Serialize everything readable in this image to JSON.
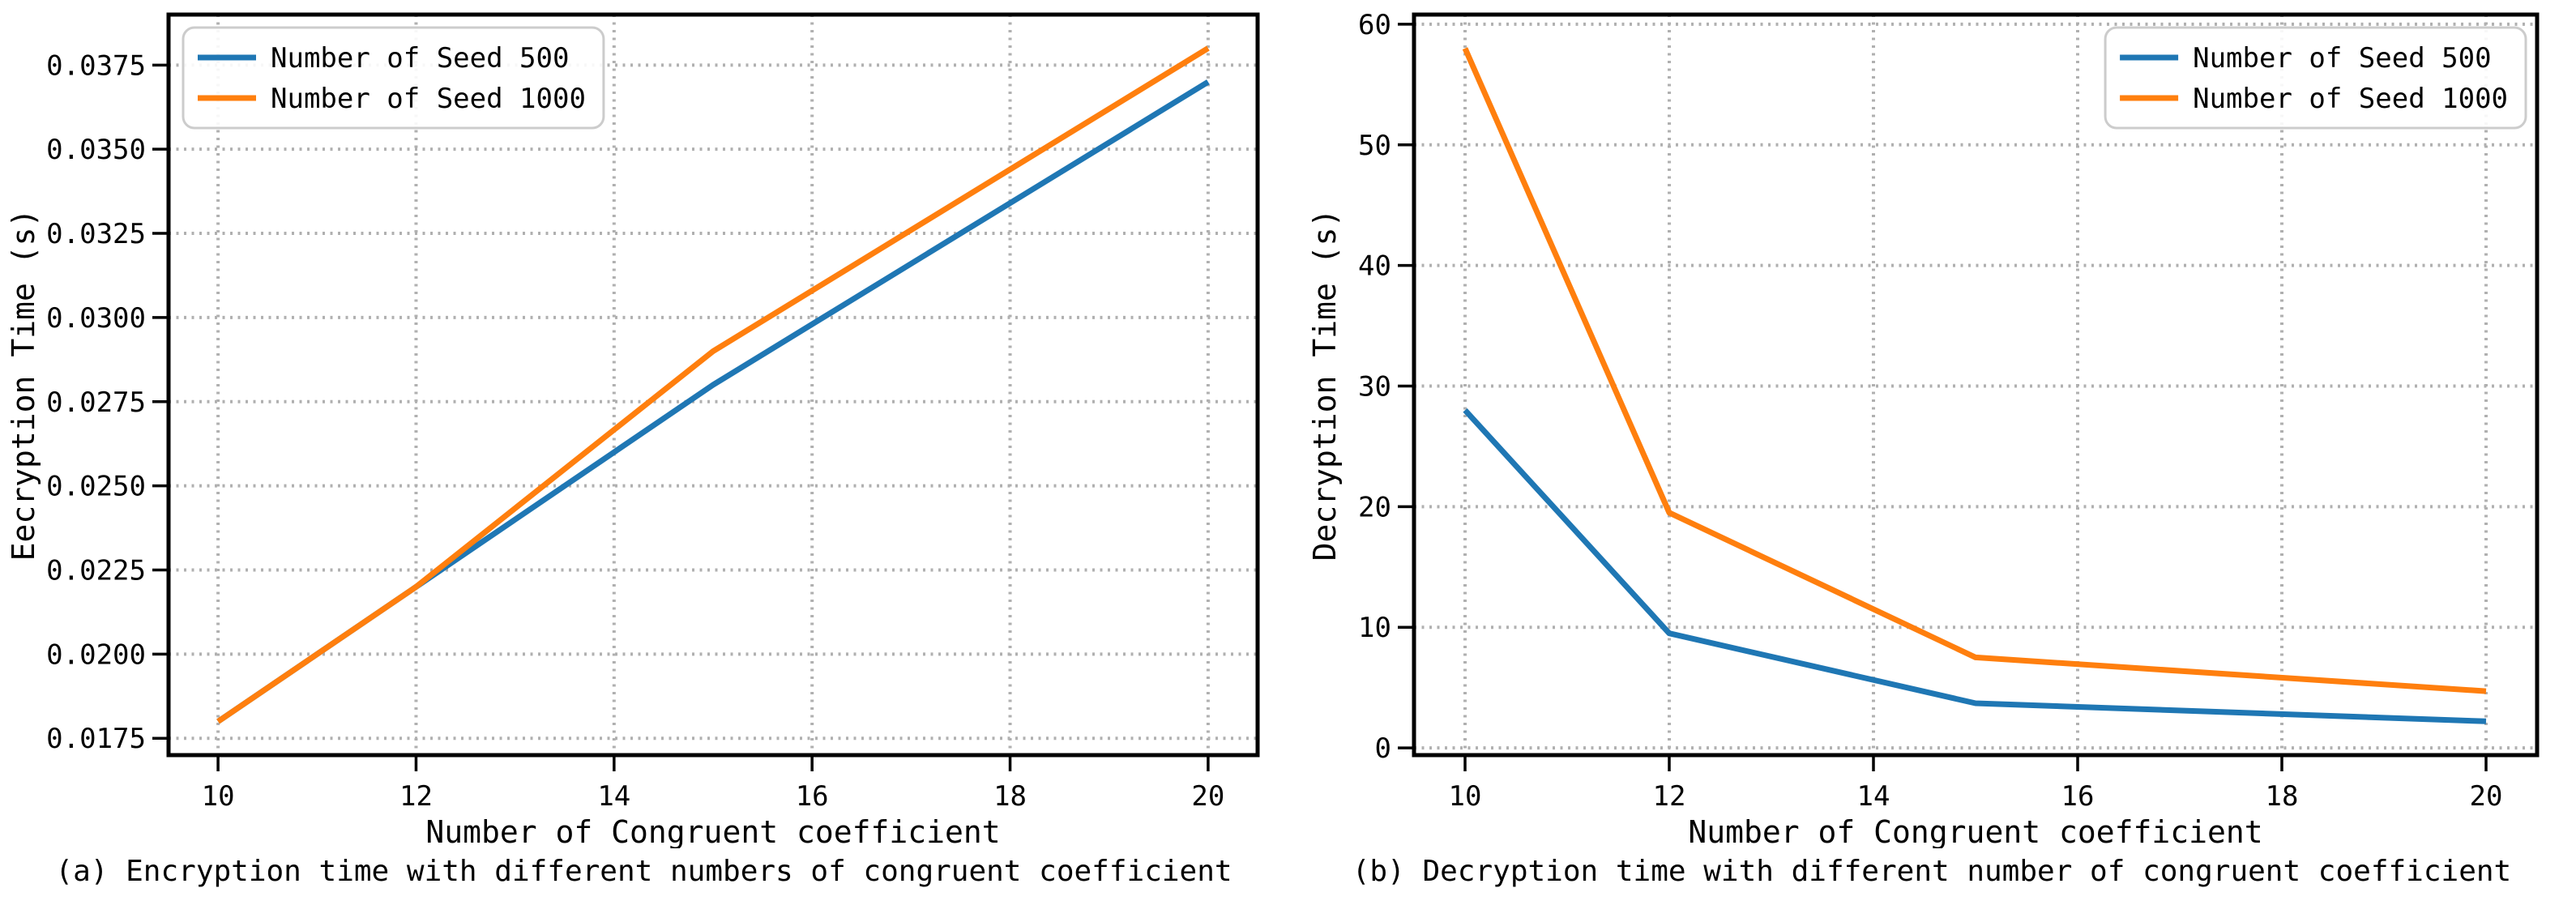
{
  "page": {
    "background": "#ffffff"
  },
  "style": {
    "spine_color": "#000000",
    "grid_color": "#b0b0b0",
    "text_color": "#000000",
    "legend_border_color": "#cccccc",
    "series_line_width": 7,
    "spine_width": 5,
    "tick_length": 20,
    "tick_width": 3.5,
    "tick_font_size": 34,
    "axis_label_font_size": 38,
    "legend_font_size": 34
  },
  "chart_data": [
    {
      "type": "line",
      "caption": "(a) Encryption time with different numbers of congruent coefficient",
      "xlabel": "Number of Congruent coefficient",
      "ylabel": "Eecryption Time (s)",
      "x": [
        10,
        12,
        15,
        20
      ],
      "series": [
        {
          "name": "Number of Seed 500",
          "color": "#1f77b4",
          "values": [
            0.018,
            0.022,
            0.028,
            0.037
          ]
        },
        {
          "name": "Number of Seed 1000",
          "color": "#ff7f0e",
          "values": [
            0.018,
            0.022,
            0.029,
            0.038
          ]
        }
      ],
      "xlim": [
        9.5,
        20.5
      ],
      "ylim": [
        0.017,
        0.039
      ],
      "xticks": [
        10,
        12,
        14,
        16,
        18,
        20
      ],
      "xtick_labels": [
        "10",
        "12",
        "14",
        "16",
        "18",
        "20"
      ],
      "yticks": [
        0.0175,
        0.02,
        0.0225,
        0.025,
        0.0275,
        0.03,
        0.0325,
        0.035,
        0.0375
      ],
      "ytick_labels": [
        "0.0175",
        "0.0200",
        "0.0225",
        "0.0250",
        "0.0275",
        "0.0300",
        "0.0325",
        "0.0350",
        "0.0375"
      ],
      "grid": true,
      "grid_style": "dotted",
      "legend_position": "upper-left",
      "layout": {
        "plot_left": 208,
        "plot_right": 1552,
        "plot_top": 18,
        "plot_bottom": 932,
        "ylabel_x": 42
      }
    },
    {
      "type": "line",
      "caption": "(b) Decryption time with different number of congruent coefficient",
      "xlabel": "Number of Congruent coefficient",
      "ylabel": "Decryption Time (s)",
      "x": [
        10,
        12,
        15,
        20
      ],
      "series": [
        {
          "name": "Number of Seed 500",
          "color": "#1f77b4",
          "values": [
            28,
            9.5,
            3.7,
            2.2
          ]
        },
        {
          "name": "Number of Seed 1000",
          "color": "#ff7f0e",
          "values": [
            58,
            19.5,
            7.5,
            4.7
          ]
        }
      ],
      "xlim": [
        9.5,
        20.5
      ],
      "ylim": [
        -0.6,
        60.8
      ],
      "xticks": [
        10,
        12,
        14,
        16,
        18,
        20
      ],
      "xtick_labels": [
        "10",
        "12",
        "14",
        "16",
        "18",
        "20"
      ],
      "yticks": [
        0,
        10,
        20,
        30,
        40,
        50,
        60
      ],
      "ytick_labels": [
        "0",
        "10",
        "20",
        "30",
        "40",
        "50",
        "60"
      ],
      "grid": true,
      "grid_style": "dotted",
      "legend_position": "upper-right",
      "layout": {
        "plot_left": 155,
        "plot_right": 1541,
        "plot_top": 18,
        "plot_bottom": 932,
        "ylabel_x": 58
      }
    }
  ]
}
